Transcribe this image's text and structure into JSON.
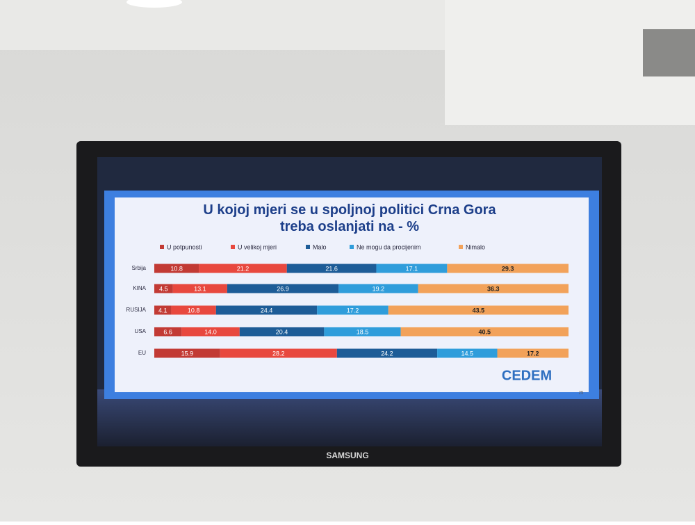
{
  "chart_data": {
    "type": "bar",
    "orientation": "horizontal",
    "stacked": true,
    "title": "U kojoj mjeri se u spoljnoj politici Crna Gora treba oslanjati na - %",
    "categories": [
      "Srbija",
      "KINA",
      "RUSIJA",
      "USA",
      "EU"
    ],
    "xlim": [
      0,
      100
    ],
    "legend": "top",
    "series": [
      {
        "name": "U potpunosti",
        "color": "#c23a34",
        "values": [
          10.8,
          4.5,
          4.1,
          6.6,
          15.9
        ]
      },
      {
        "name": "U velikoj mjeri",
        "color": "#e8483e",
        "values": [
          21.2,
          13.1,
          10.8,
          14.0,
          28.2
        ],
        "value_labels": [
          "21.2",
          "13.1",
          "10.8",
          "14.0",
          "28.2"
        ]
      },
      {
        "name": "Malo",
        "color": "#1d5c97",
        "values": [
          21.6,
          26.9,
          24.4,
          20.4,
          24.2
        ]
      },
      {
        "name": "Ne mogu da procijenim",
        "color": "#2f9ddb",
        "values": [
          17.1,
          19.2,
          17.2,
          18.5,
          14.5
        ]
      },
      {
        "name": "Nimalo",
        "color": "#f2a25a",
        "values": [
          29.3,
          36.3,
          43.5,
          40.5,
          17.2
        ]
      }
    ],
    "annotations": [
      "CEDEM",
      "25"
    ]
  },
  "device": {
    "brand": "SAMSUNG"
  }
}
